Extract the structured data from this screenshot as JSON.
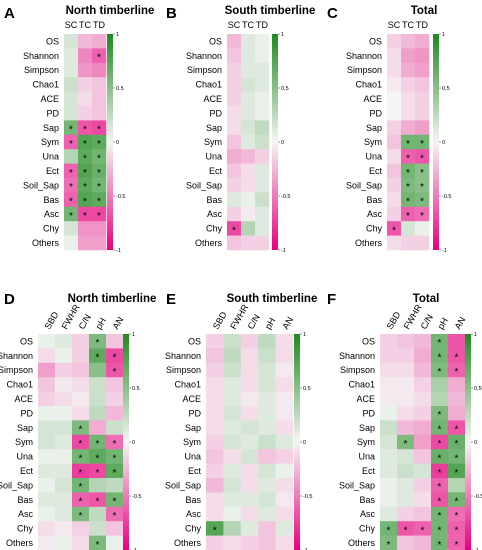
{
  "colors": {
    "negative": "#e8007e",
    "neutral": "#f5f5f5",
    "positive": "#1d8a1d",
    "star": "#000000"
  },
  "colorbar_ticks": [
    "1",
    "0.5",
    "0",
    "-0.5",
    "-1"
  ],
  "chart_data": [
    {
      "type": "heatmap",
      "panel": "A",
      "title": "North timberline",
      "columns": [
        "SC",
        "TC",
        "TD"
      ],
      "rows": [
        "OS",
        "Shannon",
        "Simpson",
        "Chao1",
        "ACE",
        "PD",
        "Sap",
        "Sym",
        "Una",
        "Ect",
        "Soil_Sap",
        "Bas",
        "Asc",
        "Chy",
        "Others"
      ],
      "values": [
        [
          0.15,
          -0.25,
          -0.3
        ],
        [
          0.1,
          -0.45,
          -0.6
        ],
        [
          0.1,
          -0.4,
          -0.45
        ],
        [
          0.2,
          -0.15,
          -0.2
        ],
        [
          0.15,
          -0.1,
          -0.2
        ],
        [
          0.15,
          -0.15,
          -0.2
        ],
        [
          0.6,
          -0.65,
          -0.7
        ],
        [
          -0.6,
          0.75,
          0.7
        ],
        [
          0.3,
          0.7,
          0.6
        ],
        [
          -0.6,
          0.75,
          0.65
        ],
        [
          -0.55,
          0.7,
          0.6
        ],
        [
          -0.6,
          0.75,
          0.7
        ],
        [
          0.6,
          -0.7,
          -0.7
        ],
        [
          0.15,
          -0.4,
          -0.4
        ],
        [
          0.05,
          -0.35,
          -0.35
        ]
      ],
      "stars": [
        [
          0,
          0,
          0
        ],
        [
          0,
          0,
          1
        ],
        [
          0,
          0,
          0
        ],
        [
          0,
          0,
          0
        ],
        [
          0,
          0,
          0
        ],
        [
          0,
          0,
          0
        ],
        [
          1,
          1,
          1
        ],
        [
          1,
          1,
          1
        ],
        [
          0,
          1,
          1
        ],
        [
          1,
          1,
          1
        ],
        [
          1,
          1,
          1
        ],
        [
          1,
          1,
          1
        ],
        [
          1,
          1,
          1
        ],
        [
          0,
          0,
          0
        ],
        [
          0,
          0,
          0
        ]
      ],
      "value_range": [
        -1,
        1
      ]
    },
    {
      "type": "heatmap",
      "panel": "B",
      "title": "South timberline",
      "columns": [
        "SC",
        "TC",
        "TD"
      ],
      "rows": [
        "OS",
        "Shannon",
        "Simpson",
        "Chao1",
        "ACE",
        "PD",
        "Sap",
        "Sym",
        "Una",
        "Ect",
        "Soil_Sap",
        "Bas",
        "Asc",
        "Chy",
        "Others"
      ],
      "values": [
        [
          -0.25,
          0.1,
          0.05
        ],
        [
          -0.2,
          0.1,
          0.05
        ],
        [
          -0.15,
          0.1,
          0.1
        ],
        [
          -0.15,
          0.15,
          0.1
        ],
        [
          -0.15,
          0.1,
          0.05
        ],
        [
          -0.1,
          0.1,
          0.05
        ],
        [
          -0.1,
          0.15,
          0.25
        ],
        [
          -0.2,
          0.1,
          0.2
        ],
        [
          -0.3,
          -0.25,
          -0.15
        ],
        [
          -0.2,
          -0.1,
          0.1
        ],
        [
          -0.15,
          -0.1,
          0.1
        ],
        [
          0.1,
          0.05,
          0.2
        ],
        [
          -0.15,
          -0.05,
          0.1
        ],
        [
          -0.7,
          0.3,
          0.1
        ],
        [
          -0.2,
          -0.15,
          -0.15
        ]
      ],
      "stars": [
        [
          0,
          0,
          0
        ],
        [
          0,
          0,
          0
        ],
        [
          0,
          0,
          0
        ],
        [
          0,
          0,
          0
        ],
        [
          0,
          0,
          0
        ],
        [
          0,
          0,
          0
        ],
        [
          0,
          0,
          0
        ],
        [
          0,
          0,
          0
        ],
        [
          0,
          0,
          0
        ],
        [
          0,
          0,
          0
        ],
        [
          0,
          0,
          0
        ],
        [
          0,
          0,
          0
        ],
        [
          0,
          0,
          0
        ],
        [
          1,
          0,
          0
        ],
        [
          0,
          0,
          0
        ]
      ],
      "value_range": [
        -1,
        1
      ]
    },
    {
      "type": "heatmap",
      "panel": "C",
      "title": "Total",
      "columns": [
        "SC",
        "TC",
        "TD"
      ],
      "rows": [
        "OS",
        "Shannon",
        "Simpson",
        "Chao1",
        "ACE",
        "PD",
        "Sap",
        "Sym",
        "Una",
        "Ect",
        "Soil_Sap",
        "Bas",
        "Asc",
        "Chy",
        "Others"
      ],
      "values": [
        [
          -0.15,
          -0.25,
          -0.3
        ],
        [
          -0.1,
          -0.35,
          -0.4
        ],
        [
          -0.1,
          -0.3,
          -0.35
        ],
        [
          -0.05,
          -0.15,
          -0.2
        ],
        [
          0.0,
          -0.1,
          -0.15
        ],
        [
          0.0,
          -0.1,
          -0.15
        ],
        [
          -0.15,
          -0.3,
          -0.35
        ],
        [
          -0.2,
          0.6,
          0.6
        ],
        [
          -0.1,
          -0.6,
          -0.65
        ],
        [
          -0.2,
          0.6,
          0.5
        ],
        [
          -0.15,
          0.55,
          0.5
        ],
        [
          -0.1,
          0.6,
          0.55
        ],
        [
          -0.15,
          -0.6,
          -0.55
        ],
        [
          -0.65,
          0.15,
          0.05
        ],
        [
          -0.1,
          -0.15,
          -0.15
        ]
      ],
      "stars": [
        [
          0,
          0,
          0
        ],
        [
          0,
          0,
          0
        ],
        [
          0,
          0,
          0
        ],
        [
          0,
          0,
          0
        ],
        [
          0,
          0,
          0
        ],
        [
          0,
          0,
          0
        ],
        [
          0,
          0,
          0
        ],
        [
          0,
          1,
          1
        ],
        [
          0,
          1,
          1
        ],
        [
          0,
          1,
          1
        ],
        [
          0,
          1,
          1
        ],
        [
          0,
          1,
          1
        ],
        [
          0,
          1,
          1
        ],
        [
          1,
          0,
          0
        ],
        [
          0,
          0,
          0
        ]
      ],
      "value_range": [
        -1,
        1
      ]
    },
    {
      "type": "heatmap",
      "panel": "D",
      "title": "North timberline",
      "columns": [
        "SBD",
        "FWHR",
        "C/N",
        "pH",
        "AN"
      ],
      "rows": [
        "OS",
        "Shannon",
        "Simpson",
        "Chao1",
        "ACE",
        "PD",
        "Sap",
        "Sym",
        "Una",
        "Ect",
        "Soil_Sap",
        "Bas",
        "Asc",
        "Chy",
        "Others"
      ],
      "values": [
        [
          0.05,
          0.1,
          -0.15,
          0.55,
          -0.2
        ],
        [
          -0.1,
          0.05,
          -0.15,
          0.7,
          -0.7
        ],
        [
          -0.35,
          -0.15,
          -0.2,
          0.5,
          -0.65
        ],
        [
          -0.2,
          -0.05,
          -0.1,
          0.2,
          -0.2
        ],
        [
          -0.15,
          -0.1,
          -0.05,
          0.2,
          -0.15
        ],
        [
          0.05,
          0.05,
          -0.1,
          0.25,
          -0.25
        ],
        [
          0.15,
          0.15,
          0.55,
          -0.3,
          0.2
        ],
        [
          0.15,
          0.1,
          -0.7,
          0.6,
          -0.55
        ],
        [
          0.05,
          0.05,
          0.6,
          0.7,
          0.6
        ],
        [
          0.1,
          0.1,
          -0.75,
          -0.7,
          0.7
        ],
        [
          0.05,
          0.15,
          0.6,
          0.3,
          0.25
        ],
        [
          0.1,
          0.1,
          -0.6,
          -0.65,
          0.6
        ],
        [
          0.05,
          0.1,
          0.55,
          0.25,
          -0.55
        ],
        [
          -0.1,
          -0.05,
          -0.15,
          0.2,
          -0.2
        ],
        [
          -0.05,
          0.05,
          -0.1,
          0.55,
          0.05
        ]
      ],
      "stars": [
        [
          0,
          0,
          0,
          1,
          0
        ],
        [
          0,
          0,
          0,
          1,
          1
        ],
        [
          0,
          0,
          0,
          0,
          1
        ],
        [
          0,
          0,
          0,
          0,
          0
        ],
        [
          0,
          0,
          0,
          0,
          0
        ],
        [
          0,
          0,
          0,
          0,
          0
        ],
        [
          0,
          0,
          1,
          0,
          0
        ],
        [
          0,
          0,
          1,
          1,
          1
        ],
        [
          0,
          0,
          1,
          1,
          1
        ],
        [
          0,
          0,
          1,
          1,
          1
        ],
        [
          0,
          0,
          1,
          0,
          0
        ],
        [
          0,
          0,
          1,
          1,
          1
        ],
        [
          0,
          0,
          1,
          0,
          1
        ],
        [
          0,
          0,
          0,
          0,
          0
        ],
        [
          0,
          0,
          0,
          1,
          0
        ]
      ],
      "value_range": [
        -1,
        1
      ]
    },
    {
      "type": "heatmap",
      "panel": "E",
      "title": "South timberline",
      "columns": [
        "SBD",
        "FWHR",
        "C/N",
        "pH",
        "AN"
      ],
      "rows": [
        "OS",
        "Shannon",
        "Simpson",
        "Chao1",
        "ACE",
        "PD",
        "Sap",
        "Sym",
        "Una",
        "Ect",
        "Soil_Sap",
        "Bas",
        "Asc",
        "Chy",
        "Others"
      ],
      "values": [
        [
          -0.15,
          0.2,
          -0.15,
          0.25,
          -0.1
        ],
        [
          -0.2,
          0.25,
          -0.1,
          0.2,
          -0.1
        ],
        [
          -0.15,
          0.2,
          -0.1,
          0.15,
          -0.05
        ],
        [
          -0.1,
          0.1,
          -0.1,
          0.15,
          -0.1
        ],
        [
          -0.1,
          0.1,
          -0.05,
          0.1,
          -0.05
        ],
        [
          -0.1,
          0.15,
          -0.1,
          0.1,
          -0.05
        ],
        [
          -0.1,
          0.1,
          0.15,
          0.1,
          -0.1
        ],
        [
          -0.15,
          0.15,
          0.1,
          0.2,
          0.1
        ],
        [
          -0.2,
          -0.1,
          0.15,
          -0.2,
          -0.15
        ],
        [
          -0.15,
          0.1,
          -0.1,
          0.15,
          0.05
        ],
        [
          -0.25,
          0.15,
          -0.1,
          0.1,
          -0.1
        ],
        [
          -0.1,
          0.1,
          0.1,
          0.15,
          -0.05
        ],
        [
          -0.1,
          0.05,
          -0.1,
          0.1,
          -0.1
        ],
        [
          0.75,
          0.3,
          0.1,
          -0.2,
          0.1
        ],
        [
          -0.15,
          -0.1,
          -0.15,
          -0.2,
          -0.1
        ]
      ],
      "stars": [
        [
          0,
          0,
          0,
          0,
          0
        ],
        [
          0,
          0,
          0,
          0,
          0
        ],
        [
          0,
          0,
          0,
          0,
          0
        ],
        [
          0,
          0,
          0,
          0,
          0
        ],
        [
          0,
          0,
          0,
          0,
          0
        ],
        [
          0,
          0,
          0,
          0,
          0
        ],
        [
          0,
          0,
          0,
          0,
          0
        ],
        [
          0,
          0,
          0,
          0,
          0
        ],
        [
          0,
          0,
          0,
          0,
          0
        ],
        [
          0,
          0,
          0,
          0,
          0
        ],
        [
          0,
          0,
          0,
          0,
          0
        ],
        [
          0,
          0,
          0,
          0,
          0
        ],
        [
          0,
          0,
          0,
          0,
          0
        ],
        [
          1,
          0,
          0,
          0,
          0
        ],
        [
          0,
          0,
          0,
          0,
          0
        ]
      ],
      "value_range": [
        -1,
        1
      ]
    },
    {
      "type": "heatmap",
      "panel": "F",
      "title": "Total",
      "columns": [
        "SBD",
        "FWHR",
        "C/N",
        "pH",
        "AN"
      ],
      "rows": [
        "OS",
        "Shannon",
        "Simpson",
        "Chao1",
        "ACE",
        "PD",
        "Sap",
        "Sym",
        "Una",
        "Ect",
        "Soil_Sap",
        "Bas",
        "Asc",
        "Chy",
        "Others"
      ],
      "values": [
        [
          -0.15,
          -0.2,
          -0.25,
          0.6,
          -0.65
        ],
        [
          -0.15,
          -0.15,
          -0.3,
          0.6,
          -0.65
        ],
        [
          -0.1,
          -0.1,
          -0.25,
          0.55,
          -0.6
        ],
        [
          -0.05,
          -0.05,
          -0.15,
          0.35,
          -0.3
        ],
        [
          -0.05,
          -0.05,
          -0.1,
          0.3,
          -0.25
        ],
        [
          0.05,
          -0.1,
          -0.15,
          0.55,
          -0.3
        ],
        [
          0.2,
          -0.25,
          -0.3,
          0.6,
          -0.65
        ],
        [
          0.15,
          0.55,
          -0.35,
          -0.7,
          0.65
        ],
        [
          0.1,
          0.15,
          -0.2,
          0.65,
          0.6
        ],
        [
          0.1,
          0.2,
          0.15,
          -0.75,
          0.75
        ],
        [
          0.05,
          0.1,
          -0.15,
          -0.6,
          0.3
        ],
        [
          0.05,
          0.1,
          -0.1,
          -0.65,
          0.6
        ],
        [
          0.1,
          -0.15,
          -0.2,
          0.6,
          -0.55
        ],
        [
          0.6,
          -0.65,
          -0.6,
          0.6,
          -0.6
        ],
        [
          0.55,
          -0.2,
          -0.25,
          0.6,
          -0.6
        ]
      ],
      "stars": [
        [
          0,
          0,
          0,
          1,
          0
        ],
        [
          0,
          0,
          0,
          1,
          1
        ],
        [
          0,
          0,
          0,
          1,
          1
        ],
        [
          0,
          0,
          0,
          0,
          0
        ],
        [
          0,
          0,
          0,
          0,
          0
        ],
        [
          0,
          0,
          0,
          1,
          0
        ],
        [
          0,
          0,
          0,
          1,
          1
        ],
        [
          0,
          1,
          0,
          1,
          1
        ],
        [
          0,
          0,
          0,
          1,
          1
        ],
        [
          0,
          0,
          0,
          1,
          1
        ],
        [
          0,
          0,
          0,
          1,
          0
        ],
        [
          0,
          0,
          0,
          1,
          1
        ],
        [
          0,
          0,
          0,
          1,
          1
        ],
        [
          1,
          1,
          1,
          1,
          1
        ],
        [
          1,
          0,
          0,
          1,
          1
        ]
      ],
      "value_range": [
        -1,
        1
      ]
    }
  ]
}
